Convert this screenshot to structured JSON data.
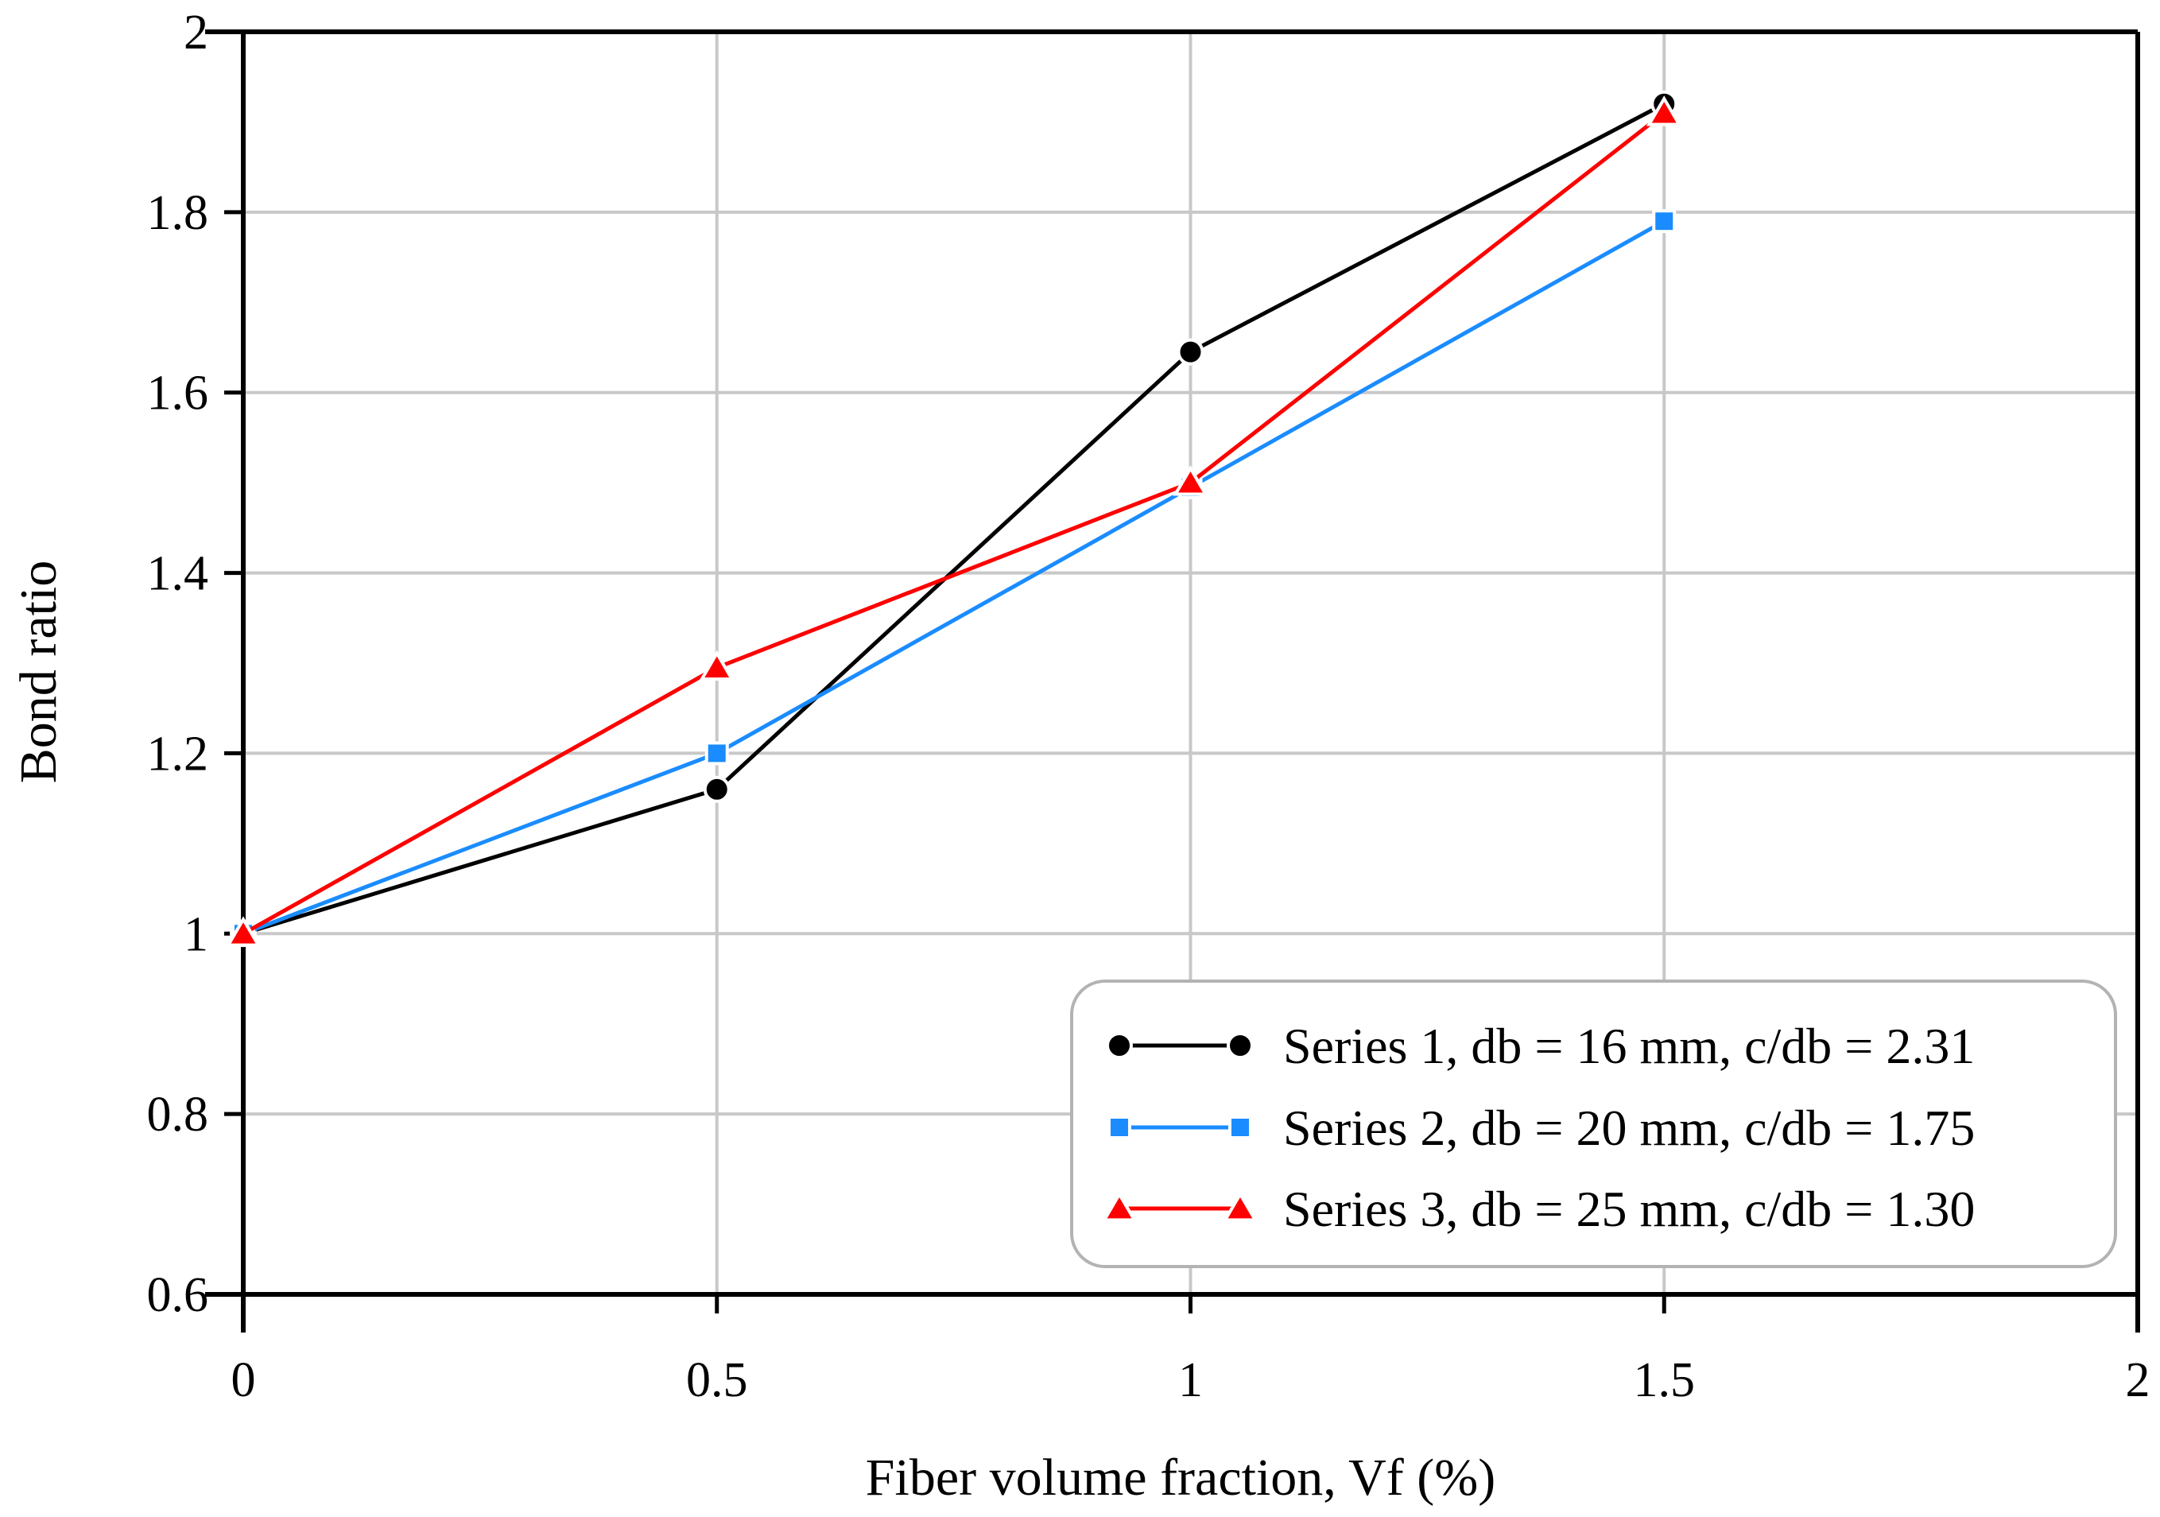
{
  "chart_data": {
    "type": "line",
    "title": "",
    "xlabel": "Fiber volume fraction, Vf (%)",
    "ylabel": "Bond ratio",
    "xlim": [
      0,
      2
    ],
    "ylim": [
      0.6,
      2
    ],
    "xticks": [
      0,
      0.5,
      1,
      1.5,
      2
    ],
    "yticks": [
      0.6,
      0.8,
      1,
      1.2,
      1.4,
      1.6,
      1.8,
      2
    ],
    "xtick_labels": [
      "0",
      "0.5",
      "1",
      "1.5",
      "2"
    ],
    "ytick_labels": [
      "0.6",
      "0.8",
      "1",
      "1.2",
      "1.4",
      "1.6",
      "1.8",
      "2"
    ],
    "grid": true,
    "legend_position": "bottom-right",
    "x": [
      0,
      0.5,
      1,
      1.5
    ],
    "series": [
      {
        "name": "Series 1, db = 16 mm, c/db = 2.31",
        "values": [
          1.0,
          1.16,
          1.645,
          1.92
        ],
        "color": "#000000",
        "marker": "circle"
      },
      {
        "name": "Series 2, db = 20 mm, c/db = 1.75",
        "values": [
          1.0,
          1.2,
          1.495,
          1.79
        ],
        "color": "#1a8cff",
        "marker": "square"
      },
      {
        "name": "Series 3, db = 25 mm, c/db = 1.30",
        "values": [
          1.0,
          1.295,
          1.5,
          1.91
        ],
        "color": "#ff0000",
        "marker": "triangle"
      }
    ]
  }
}
